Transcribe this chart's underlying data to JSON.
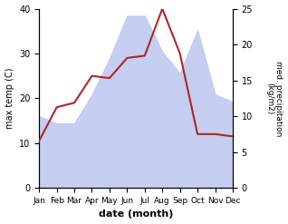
{
  "months": [
    "Jan",
    "Feb",
    "Mar",
    "Apr",
    "May",
    "Jun",
    "Jul",
    "Aug",
    "Sep",
    "Oct",
    "Nov",
    "Dec"
  ],
  "temp": [
    10.5,
    18.0,
    19.0,
    25.0,
    24.5,
    29.0,
    29.5,
    40.0,
    30.0,
    12.0,
    12.0,
    11.5
  ],
  "precip": [
    10.0,
    9.0,
    9.0,
    13.0,
    18.0,
    24.0,
    24.0,
    19.0,
    16.0,
    22.0,
    13.0,
    12.0
  ],
  "temp_color": "#aa2828",
  "precip_fill_color": "#c5cdf0",
  "ylabel_left": "max temp (C)",
  "ylabel_right": "med. precipitation\n(kg/m2)",
  "xlabel": "date (month)",
  "ylim_left": [
    0,
    40
  ],
  "ylim_right": [
    0,
    25
  ],
  "background_color": "#ffffff"
}
